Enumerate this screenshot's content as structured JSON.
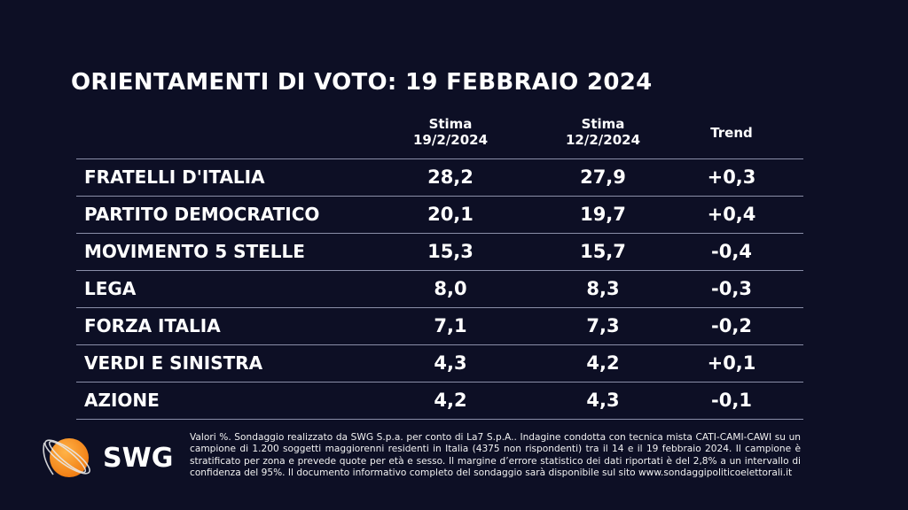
{
  "title": "ORIENTAMENTI DI VOTO: 19 FEBBRAIO 2024",
  "chart_data": {
    "type": "table",
    "columns": [
      {
        "line1": "Stima",
        "line2": "19/2/2024"
      },
      {
        "line1": "Stima",
        "line2": "12/2/2024"
      },
      {
        "line1": "Trend",
        "line2": ""
      }
    ],
    "rows": [
      {
        "party": "FRATELLI D'ITALIA",
        "v1": "28,2",
        "v2": "27,9",
        "trend": "+0,3"
      },
      {
        "party": "PARTITO DEMOCRATICO",
        "v1": "20,1",
        "v2": "19,7",
        "trend": "+0,4"
      },
      {
        "party": "MOVIMENTO 5 STELLE",
        "v1": "15,3",
        "v2": "15,7",
        "trend": "-0,4"
      },
      {
        "party": "LEGA",
        "v1": "8,0",
        "v2": "8,3",
        "trend": "-0,3"
      },
      {
        "party": "FORZA ITALIA",
        "v1": "7,1",
        "v2": "7,3",
        "trend": "-0,2"
      },
      {
        "party": "VERDI E SINISTRA",
        "v1": "4,3",
        "v2": "4,2",
        "trend": "+0,1"
      },
      {
        "party": "AZIONE",
        "v1": "4,2",
        "v2": "4,3",
        "trend": "-0,1"
      }
    ]
  },
  "footer": "Valori %. Sondaggio realizzato da SWG S.p.a. per conto di La7 S.p.A.. Indagine condotta con tecnica mista CATI-CAMI-CAWI su un campione di 1.200 soggetti maggiorenni residenti in Italia (4375 non rispondenti) tra il 14 e il 19 febbraio 2024. Il campione è stratificato per zona e prevede quote per età e sesso. Il margine d’errore statistico dei dati riportati è del 2,8% a un intervallo di confidenza del 95%. Il documento informativo completo del sondaggio sarà disponibile sul sito www.sondaggipoliticoelettorali.it",
  "logo": {
    "text": "SWG",
    "color": "#f7931e"
  },
  "colors": {
    "background": "#0d0f25",
    "rule": "#8a8ea8"
  }
}
